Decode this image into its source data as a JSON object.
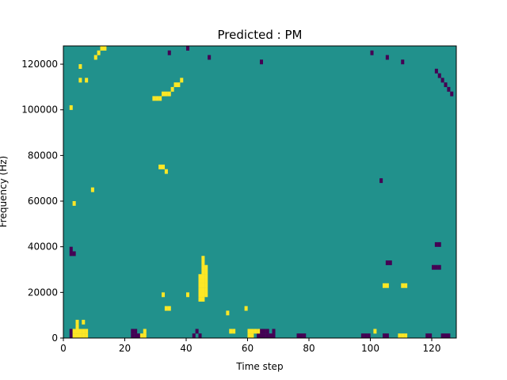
{
  "chart_data": {
    "type": "heatmap",
    "title": "Predicted : PM",
    "xlabel": "Time step",
    "ylabel": "Frequency (Hz)",
    "xlim": [
      0,
      128
    ],
    "ylim": [
      0,
      128000
    ],
    "x_ticks": [
      0,
      20,
      40,
      60,
      80,
      100,
      120
    ],
    "y_ticks": [
      0,
      20000,
      40000,
      60000,
      80000,
      100000,
      120000
    ],
    "y_tick_labels": [
      "0",
      "20000",
      "40000",
      "60000",
      "80000",
      "100000",
      "120000"
    ],
    "n_time_steps": 128,
    "n_freq_bins": 64,
    "bin_hz": 2000,
    "colors": {
      "background": "#21918c",
      "low": "#440154",
      "high": "#fde725"
    },
    "value_legend": {
      "background": 0,
      "low": -1,
      "high": 1
    },
    "high_cells": [
      [
        3,
        0
      ],
      [
        3,
        1
      ],
      [
        4,
        0
      ],
      [
        4,
        1
      ],
      [
        4,
        2
      ],
      [
        4,
        3
      ],
      [
        5,
        0
      ],
      [
        5,
        1
      ],
      [
        6,
        0
      ],
      [
        6,
        1
      ],
      [
        6,
        3
      ],
      [
        7,
        0
      ],
      [
        7,
        1
      ],
      [
        44,
        8
      ],
      [
        44,
        9
      ],
      [
        44,
        10
      ],
      [
        44,
        11
      ],
      [
        44,
        12
      ],
      [
        44,
        13
      ],
      [
        45,
        8
      ],
      [
        45,
        9
      ],
      [
        45,
        10
      ],
      [
        45,
        11
      ],
      [
        45,
        12
      ],
      [
        45,
        13
      ],
      [
        45,
        14
      ],
      [
        45,
        15
      ],
      [
        45,
        16
      ],
      [
        45,
        17
      ],
      [
        46,
        9
      ],
      [
        46,
        10
      ],
      [
        46,
        11
      ],
      [
        46,
        12
      ],
      [
        46,
        13
      ],
      [
        46,
        14
      ],
      [
        46,
        15
      ],
      [
        54,
        1
      ],
      [
        55,
        1
      ],
      [
        60,
        0
      ],
      [
        60,
        1
      ],
      [
        61,
        0
      ],
      [
        61,
        1
      ],
      [
        62,
        1
      ],
      [
        63,
        1
      ],
      [
        101,
        1
      ],
      [
        109,
        0
      ],
      [
        110,
        0
      ],
      [
        111,
        0
      ],
      [
        25,
        0
      ],
      [
        26,
        0
      ],
      [
        26,
        1
      ],
      [
        53,
        5
      ],
      [
        59,
        6
      ],
      [
        33,
        6
      ],
      [
        34,
        6
      ],
      [
        32,
        9
      ],
      [
        40,
        9
      ],
      [
        104,
        11
      ],
      [
        105,
        11
      ],
      [
        110,
        11
      ],
      [
        111,
        11
      ],
      [
        31,
        37
      ],
      [
        32,
        37
      ],
      [
        33,
        36
      ],
      [
        3,
        29
      ],
      [
        9,
        32
      ],
      [
        2,
        50
      ],
      [
        5,
        56
      ],
      [
        7,
        56
      ],
      [
        5,
        59
      ],
      [
        10,
        61
      ],
      [
        11,
        62
      ],
      [
        12,
        63
      ],
      [
        13,
        63
      ],
      [
        29,
        52
      ],
      [
        30,
        52
      ],
      [
        31,
        52
      ],
      [
        32,
        53
      ],
      [
        33,
        53
      ],
      [
        34,
        53
      ],
      [
        35,
        54
      ],
      [
        36,
        55
      ],
      [
        37,
        55
      ],
      [
        38,
        56
      ]
    ],
    "low_cells": [
      [
        2,
        0
      ],
      [
        2,
        1
      ],
      [
        22,
        0
      ],
      [
        22,
        1
      ],
      [
        23,
        0
      ],
      [
        23,
        1
      ],
      [
        24,
        0
      ],
      [
        63,
        0
      ],
      [
        63,
        1
      ],
      [
        64,
        0
      ],
      [
        64,
        1
      ],
      [
        65,
        0
      ],
      [
        65,
        1
      ],
      [
        66,
        0
      ],
      [
        66,
        1
      ],
      [
        67,
        0
      ],
      [
        68,
        0
      ],
      [
        68,
        1
      ],
      [
        76,
        0
      ],
      [
        77,
        0
      ],
      [
        78,
        0
      ],
      [
        97,
        0
      ],
      [
        98,
        0
      ],
      [
        99,
        0
      ],
      [
        104,
        0
      ],
      [
        105,
        0
      ],
      [
        118,
        0
      ],
      [
        119,
        0
      ],
      [
        123,
        0
      ],
      [
        124,
        0
      ],
      [
        125,
        0
      ],
      [
        2,
        18
      ],
      [
        3,
        18
      ],
      [
        2,
        19
      ],
      [
        42,
        0
      ],
      [
        43,
        1
      ],
      [
        44,
        0
      ],
      [
        120,
        15
      ],
      [
        121,
        15
      ],
      [
        122,
        15
      ],
      [
        121,
        20
      ],
      [
        122,
        20
      ],
      [
        105,
        16
      ],
      [
        106,
        16
      ],
      [
        103,
        34
      ],
      [
        40,
        63
      ],
      [
        34,
        62
      ],
      [
        47,
        61
      ],
      [
        64,
        60
      ],
      [
        100,
        62
      ],
      [
        105,
        61
      ],
      [
        110,
        60
      ],
      [
        121,
        58
      ],
      [
        122,
        57
      ],
      [
        123,
        56
      ],
      [
        124,
        55
      ],
      [
        125,
        54
      ],
      [
        126,
        53
      ]
    ]
  }
}
